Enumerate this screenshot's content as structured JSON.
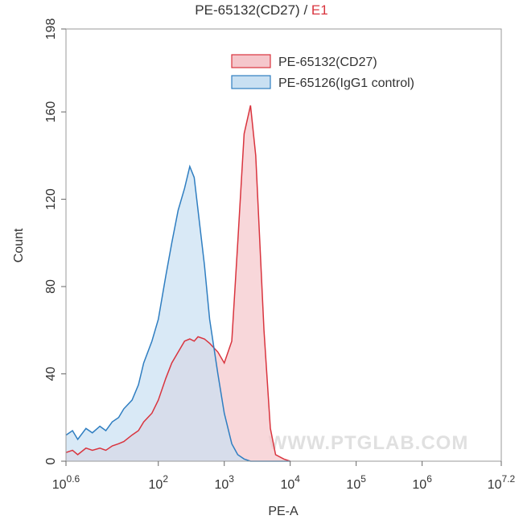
{
  "chart_data": {
    "type": "histogram-overlay",
    "title": [
      "PE-65132(CD27)",
      "/",
      "E1"
    ],
    "x_label": "PE-A",
    "y_label": "Count",
    "watermark": "WWW.PTGLAB.COM",
    "xscale": "log",
    "xlim": [
      3.981,
      15848932
    ],
    "ylim": [
      0,
      198
    ],
    "xticks": [
      {
        "value": 3.981,
        "label": "10",
        "exponent": "0.6"
      },
      {
        "value": 100,
        "label": "10",
        "exponent": "2"
      },
      {
        "value": 1000,
        "label": "10",
        "exponent": "3"
      },
      {
        "value": 10000,
        "label": "10",
        "exponent": "4"
      },
      {
        "value": 100000,
        "label": "10",
        "exponent": "5"
      },
      {
        "value": 1000000,
        "label": "10",
        "exponent": "6"
      },
      {
        "value": 15848932,
        "label": "10",
        "exponent": "7.2"
      }
    ],
    "yticks": [
      0,
      40,
      80,
      120,
      160,
      198
    ],
    "legend": "upper right",
    "x": [
      4,
      5,
      6,
      8,
      10,
      13,
      16,
      20,
      25,
      30,
      40,
      50,
      60,
      80,
      100,
      130,
      160,
      200,
      250,
      300,
      350,
      400,
      500,
      600,
      800,
      1000,
      1300,
      1600,
      2000,
      2500,
      3000,
      4000,
      5000,
      6000,
      8000,
      10000
    ],
    "series": [
      {
        "name": "PE-65132(CD27)",
        "color": "#d9343e",
        "fill": "#f5c6cb",
        "values": [
          4,
          5,
          3,
          6,
          5,
          6,
          5,
          7,
          8,
          9,
          12,
          14,
          18,
          22,
          28,
          38,
          45,
          50,
          55,
          56,
          55,
          57,
          56,
          54,
          50,
          45,
          55,
          100,
          150,
          163,
          140,
          60,
          15,
          3,
          1,
          0
        ]
      },
      {
        "name": "PE-65126(IgG1 control)",
        "color": "#2f7ec1",
        "fill": "#c9e0f2",
        "values": [
          12,
          14,
          10,
          15,
          13,
          16,
          14,
          18,
          20,
          24,
          28,
          35,
          45,
          55,
          65,
          85,
          100,
          115,
          125,
          135,
          130,
          115,
          90,
          65,
          40,
          22,
          8,
          3,
          1,
          0,
          0,
          0,
          0,
          0,
          0,
          0
        ]
      }
    ]
  }
}
